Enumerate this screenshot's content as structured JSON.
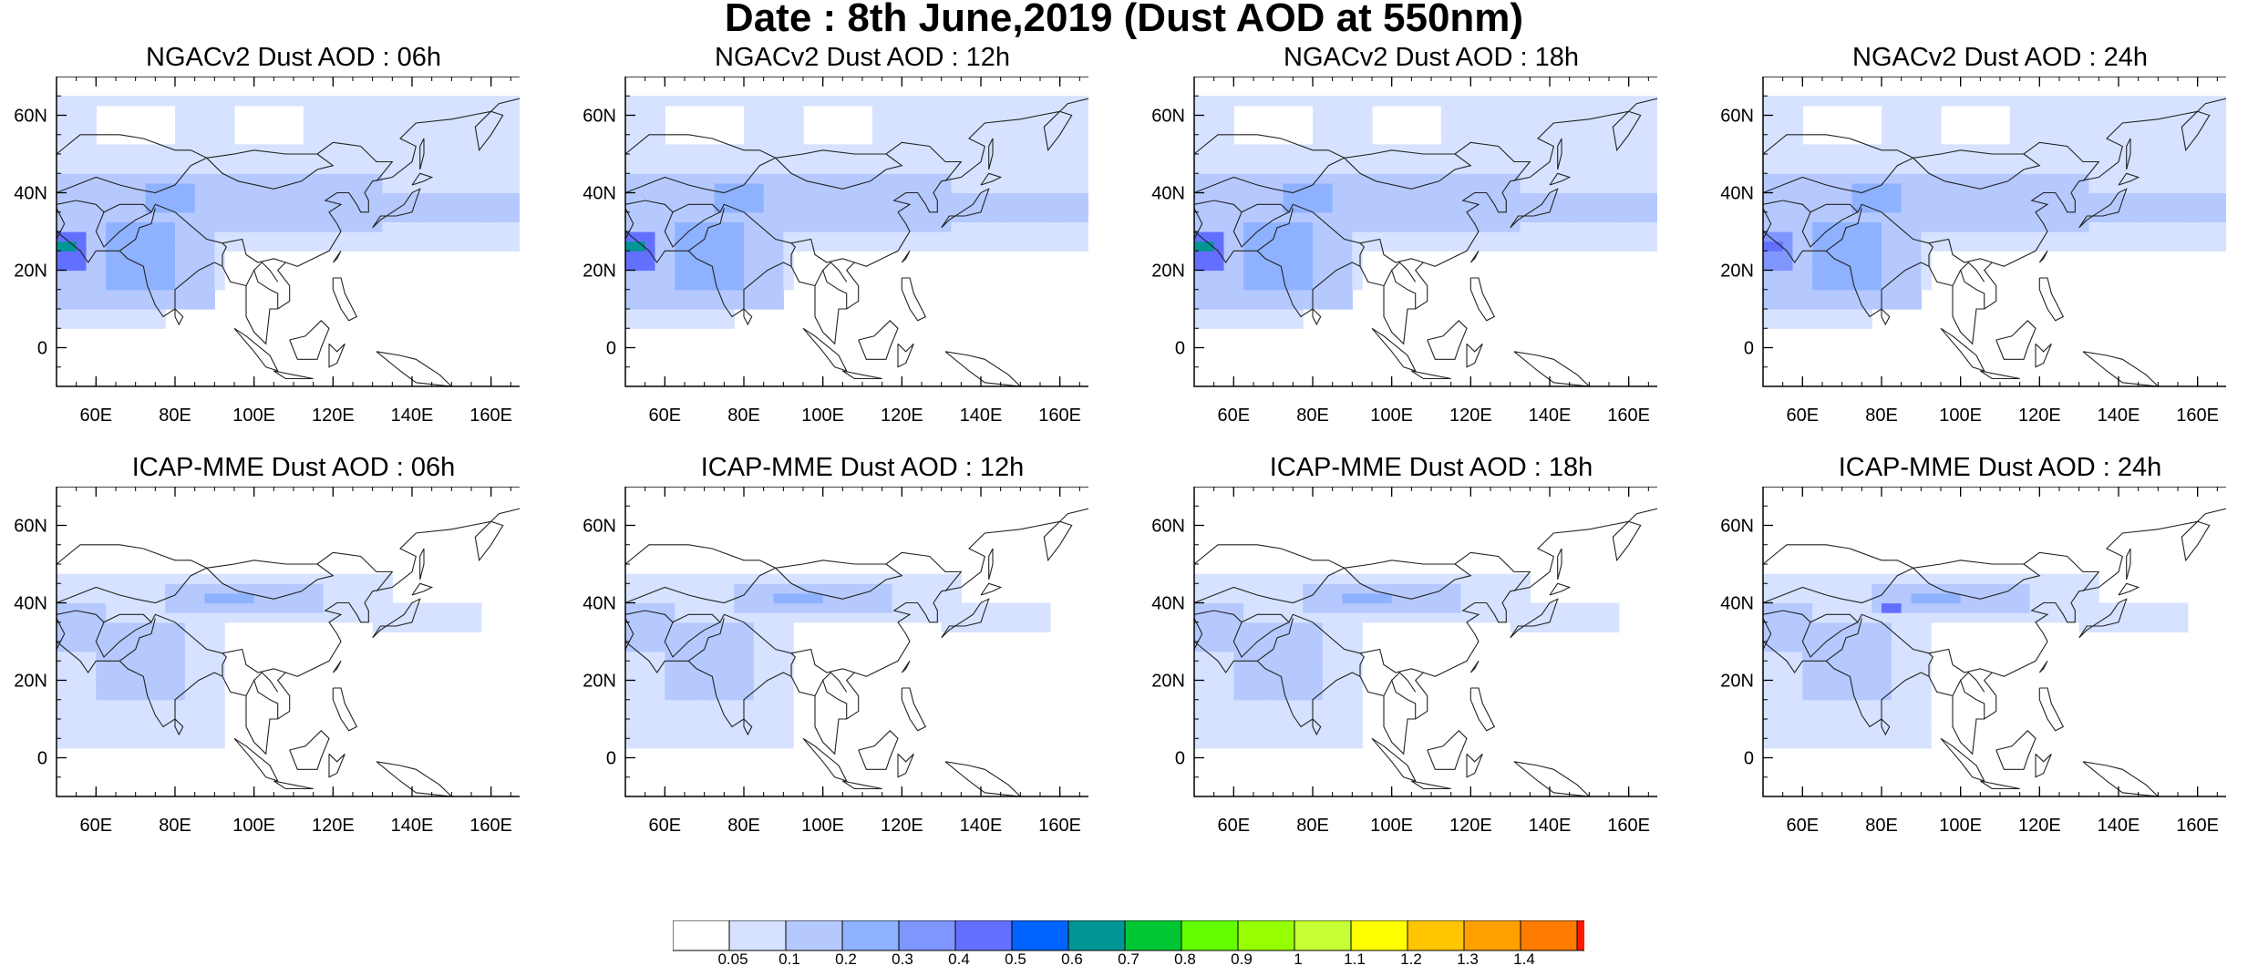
{
  "figure": {
    "title": "Date : 8th June,2019 (Dust AOD at 550nm)"
  },
  "axes": {
    "x_ticks": [
      "60E",
      "80E",
      "100E",
      "120E",
      "140E",
      "160E"
    ],
    "y_ticks": [
      "60N",
      "40N",
      "20N",
      "0"
    ]
  },
  "panels": [
    {
      "title": "NGACv2 Dust AOD : 06h"
    },
    {
      "title": "NGACv2 Dust AOD : 12h"
    },
    {
      "title": "NGACv2 Dust AOD : 18h"
    },
    {
      "title": "NGACv2 Dust AOD : 24h"
    },
    {
      "title": "ICAP-MME Dust AOD : 06h"
    },
    {
      "title": "ICAP-MME Dust AOD : 12h"
    },
    {
      "title": "ICAP-MME Dust AOD : 18h"
    },
    {
      "title": "ICAP-MME Dust AOD : 24h"
    }
  ],
  "colorbar": {
    "labels": [
      "0.05",
      "0.1",
      "0.2",
      "0.3",
      "0.4",
      "0.5",
      "0.6",
      "0.7",
      "0.8",
      "0.9",
      "1",
      "1.1",
      "1.2",
      "1.3",
      "1.4"
    ],
    "colors": [
      "#ffffff",
      "#d6e2ff",
      "#b5c9ff",
      "#8eb2ff",
      "#7f96ff",
      "#6370ff",
      "#0063ff",
      "#009696",
      "#00c633",
      "#63ff00",
      "#96ff00",
      "#c6ff33",
      "#ffff00",
      "#ffc600",
      "#ffa000",
      "#ff7c00",
      "#ff1900"
    ]
  },
  "chart_data": {
    "type": "heatmap",
    "title": "Date : 8th June,2019 (Dust AOD at 550nm)",
    "xlim": [
      50,
      170
    ],
    "ylim": [
      -10,
      70
    ],
    "x_ticks": [
      60,
      80,
      100,
      120,
      140,
      160
    ],
    "y_ticks": [
      60,
      40,
      20,
      0
    ],
    "levels": [
      0.05,
      0.1,
      0.2,
      0.3,
      0.4,
      0.5,
      0.6,
      0.7,
      0.8,
      0.9,
      1,
      1.1,
      1.2,
      1.3,
      1.4
    ],
    "panels": [
      {
        "name": "NGACv2 Dust AOD : 06h"
      },
      {
        "name": "NGACv2 Dust AOD : 12h"
      },
      {
        "name": "NGACv2 Dust AOD : 18h"
      },
      {
        "name": "NGACv2 Dust AOD : 24h"
      },
      {
        "name": "ICAP-MME Dust AOD : 06h"
      },
      {
        "name": "ICAP-MME Dust AOD : 12h"
      },
      {
        "name": "ICAP-MME Dust AOD : 18h"
      },
      {
        "name": "ICAP-MME Dust AOD : 24h"
      }
    ]
  }
}
